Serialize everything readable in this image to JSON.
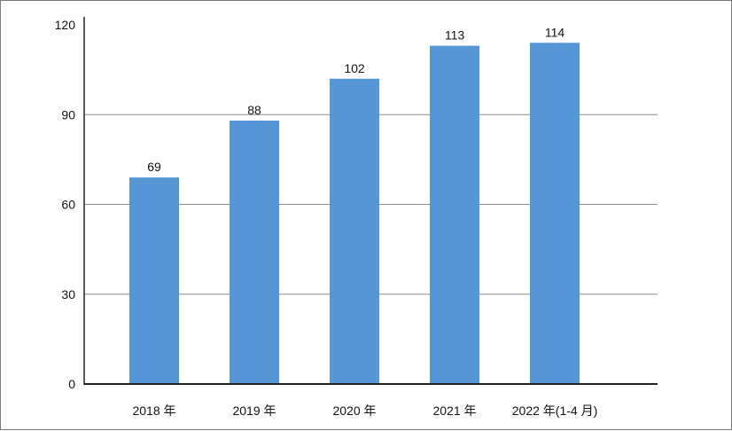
{
  "chart_data": {
    "type": "bar",
    "title": "",
    "xlabel": "",
    "ylabel": "",
    "categories": [
      "2018 年",
      "2019 年",
      "2020 年",
      "2021 年",
      "2022 年(1-4 月)"
    ],
    "values": [
      69,
      88,
      102,
      113,
      114
    ],
    "value_labels": [
      "69",
      "88",
      "102",
      "113",
      "114"
    ],
    "ylim": [
      0,
      120
    ],
    "yticks": [
      0,
      30,
      60,
      90,
      120
    ],
    "ytick_labels": [
      "0",
      "30",
      "60",
      "90",
      "120"
    ],
    "grid": true,
    "legend": "none",
    "colors": {
      "bar": "#5597d6",
      "grid": "#8a8a8a",
      "axis": "#222222"
    }
  }
}
